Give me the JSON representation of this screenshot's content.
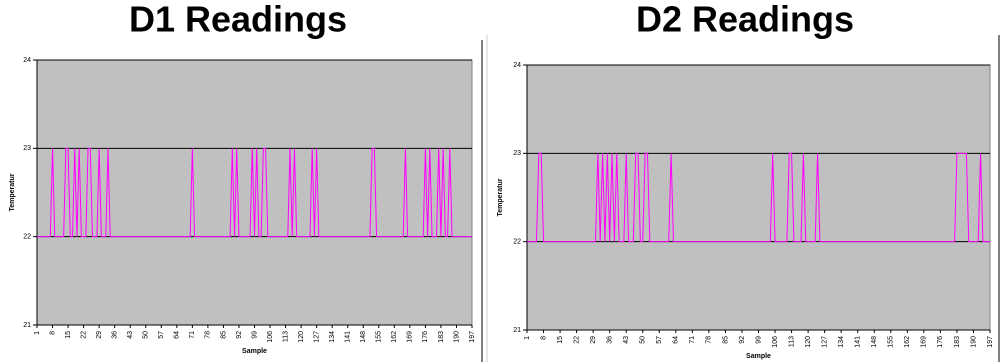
{
  "chart_data": [
    {
      "type": "line",
      "title": "D1 Readings",
      "x_label": "Sample",
      "y_label": "Temperatur",
      "color": "#ff00ff",
      "grid": true,
      "ylim": [
        21,
        24
      ],
      "yticks": [
        21,
        22,
        23,
        24
      ],
      "xlim": [
        1,
        197
      ],
      "xticks": [
        1,
        8,
        15,
        22,
        29,
        36,
        43,
        50,
        57,
        64,
        71,
        78,
        85,
        92,
        99,
        106,
        113,
        120,
        127,
        134,
        141,
        148,
        155,
        162,
        169,
        176,
        183,
        190,
        197
      ],
      "x": [
        1,
        2,
        3,
        4,
        5,
        6,
        7,
        8,
        9,
        10,
        11,
        12,
        13,
        14,
        15,
        16,
        17,
        18,
        19,
        20,
        21,
        22,
        23,
        24,
        25,
        26,
        27,
        28,
        29,
        30,
        31,
        32,
        33,
        34,
        35,
        36,
        37,
        38,
        39,
        40,
        41,
        42,
        43,
        44,
        45,
        46,
        47,
        48,
        49,
        50,
        51,
        52,
        53,
        54,
        55,
        56,
        57,
        58,
        59,
        60,
        61,
        62,
        63,
        64,
        65,
        66,
        67,
        68,
        69,
        70,
        71,
        72,
        73,
        74,
        75,
        76,
        77,
        78,
        79,
        80,
        81,
        82,
        83,
        84,
        85,
        86,
        87,
        88,
        89,
        90,
        91,
        92,
        93,
        94,
        95,
        96,
        97,
        98,
        99,
        100,
        101,
        102,
        103,
        104,
        105,
        106,
        107,
        108,
        109,
        110,
        111,
        112,
        113,
        114,
        115,
        116,
        117,
        118,
        119,
        120,
        121,
        122,
        123,
        124,
        125,
        126,
        127,
        128,
        129,
        130,
        131,
        132,
        133,
        134,
        135,
        136,
        137,
        138,
        139,
        140,
        141,
        142,
        143,
        144,
        145,
        146,
        147,
        148,
        149,
        150,
        151,
        152,
        153,
        154,
        155,
        156,
        157,
        158,
        159,
        160,
        161,
        162,
        163,
        164,
        165,
        166,
        167,
        168,
        169,
        170,
        171,
        172,
        173,
        174,
        175,
        176,
        177,
        178,
        179,
        180,
        181,
        182,
        183,
        184,
        185,
        186,
        187,
        188,
        189,
        190,
        191,
        192,
        193,
        194,
        195,
        196,
        197
      ],
      "values": [
        22,
        22,
        22,
        22,
        22,
        22,
        22,
        23,
        22,
        22,
        22,
        22,
        22,
        23,
        23,
        22,
        22,
        23,
        22,
        23,
        22,
        22,
        22,
        23,
        23,
        22,
        22,
        22,
        23,
        22,
        22,
        22,
        23,
        22,
        22,
        22,
        22,
        22,
        22,
        22,
        22,
        22,
        22,
        22,
        22,
        22,
        22,
        22,
        22,
        22,
        22,
        22,
        22,
        22,
        22,
        22,
        22,
        22,
        22,
        22,
        22,
        22,
        22,
        22,
        22,
        22,
        22,
        22,
        22,
        22,
        23,
        22,
        22,
        22,
        22,
        22,
        22,
        22,
        22,
        22,
        22,
        22,
        22,
        22,
        22,
        22,
        22,
        22,
        23,
        22,
        23,
        22,
        22,
        22,
        22,
        22,
        22,
        23,
        22,
        23,
        22,
        22,
        23,
        23,
        22,
        22,
        22,
        22,
        22,
        22,
        22,
        22,
        22,
        22,
        23,
        22,
        23,
        22,
        22,
        22,
        22,
        22,
        22,
        22,
        23,
        22,
        23,
        22,
        22,
        22,
        22,
        22,
        22,
        22,
        22,
        22,
        22,
        22,
        22,
        22,
        22,
        22,
        22,
        22,
        22,
        22,
        22,
        22,
        22,
        22,
        22,
        23,
        23,
        22,
        22,
        22,
        22,
        22,
        22,
        22,
        22,
        22,
        22,
        22,
        22,
        22,
        23,
        22,
        22,
        22,
        22,
        22,
        22,
        22,
        22,
        23,
        22,
        23,
        22,
        22,
        22,
        23,
        22,
        23,
        22,
        22,
        23,
        22,
        22,
        22,
        22,
        22,
        22,
        22,
        22,
        22,
        22
      ]
    },
    {
      "type": "line",
      "title": "D2 Readings",
      "x_label": "Sample",
      "y_label": "Temperatur",
      "color": "#ff00ff",
      "grid": true,
      "ylim": [
        21,
        24
      ],
      "yticks": [
        21,
        22,
        23,
        24
      ],
      "xlim": [
        1,
        197
      ],
      "xticks": [
        1,
        8,
        15,
        22,
        29,
        36,
        43,
        50,
        57,
        64,
        71,
        78,
        85,
        92,
        99,
        106,
        113,
        120,
        127,
        134,
        141,
        148,
        155,
        162,
        169,
        176,
        183,
        190,
        197
      ],
      "x": [
        1,
        2,
        3,
        4,
        5,
        6,
        7,
        8,
        9,
        10,
        11,
        12,
        13,
        14,
        15,
        16,
        17,
        18,
        19,
        20,
        21,
        22,
        23,
        24,
        25,
        26,
        27,
        28,
        29,
        30,
        31,
        32,
        33,
        34,
        35,
        36,
        37,
        38,
        39,
        40,
        41,
        42,
        43,
        44,
        45,
        46,
        47,
        48,
        49,
        50,
        51,
        52,
        53,
        54,
        55,
        56,
        57,
        58,
        59,
        60,
        61,
        62,
        63,
        64,
        65,
        66,
        67,
        68,
        69,
        70,
        71,
        72,
        73,
        74,
        75,
        76,
        77,
        78,
        79,
        80,
        81,
        82,
        83,
        84,
        85,
        86,
        87,
        88,
        89,
        90,
        91,
        92,
        93,
        94,
        95,
        96,
        97,
        98,
        99,
        100,
        101,
        102,
        103,
        104,
        105,
        106,
        107,
        108,
        109,
        110,
        111,
        112,
        113,
        114,
        115,
        116,
        117,
        118,
        119,
        120,
        121,
        122,
        123,
        124,
        125,
        126,
        127,
        128,
        129,
        130,
        131,
        132,
        133,
        134,
        135,
        136,
        137,
        138,
        139,
        140,
        141,
        142,
        143,
        144,
        145,
        146,
        147,
        148,
        149,
        150,
        151,
        152,
        153,
        154,
        155,
        156,
        157,
        158,
        159,
        160,
        161,
        162,
        163,
        164,
        165,
        166,
        167,
        168,
        169,
        170,
        171,
        172,
        173,
        174,
        175,
        176,
        177,
        178,
        179,
        180,
        181,
        182,
        183,
        184,
        185,
        186,
        187,
        188,
        189,
        190,
        191,
        192,
        193,
        194,
        195,
        196,
        197
      ],
      "values": [
        22,
        22,
        22,
        22,
        22,
        23,
        23,
        22,
        22,
        22,
        22,
        22,
        22,
        22,
        22,
        22,
        22,
        22,
        22,
        22,
        22,
        22,
        22,
        22,
        22,
        22,
        22,
        22,
        22,
        22,
        23,
        22,
        23,
        22,
        23,
        22,
        23,
        22,
        23,
        22,
        22,
        22,
        23,
        22,
        22,
        22,
        23,
        23,
        22,
        22,
        23,
        23,
        22,
        22,
        22,
        22,
        22,
        22,
        22,
        22,
        22,
        23,
        22,
        22,
        22,
        22,
        22,
        22,
        22,
        22,
        22,
        22,
        22,
        22,
        22,
        22,
        22,
        22,
        22,
        22,
        22,
        22,
        22,
        22,
        22,
        22,
        22,
        22,
        22,
        22,
        22,
        22,
        22,
        22,
        22,
        22,
        22,
        22,
        22,
        22,
        22,
        22,
        22,
        22,
        23,
        22,
        22,
        22,
        22,
        22,
        22,
        23,
        23,
        22,
        22,
        22,
        22,
        23,
        22,
        22,
        22,
        22,
        22,
        23,
        22,
        22,
        22,
        22,
        22,
        22,
        22,
        22,
        22,
        22,
        22,
        22,
        22,
        22,
        22,
        22,
        22,
        22,
        22,
        22,
        22,
        22,
        22,
        22,
        22,
        22,
        22,
        22,
        22,
        22,
        22,
        22,
        22,
        22,
        22,
        22,
        22,
        22,
        22,
        22,
        22,
        22,
        22,
        22,
        22,
        22,
        22,
        22,
        22,
        22,
        22,
        22,
        22,
        22,
        22,
        22,
        22,
        22,
        23,
        23,
        23,
        23,
        23,
        22,
        22,
        22,
        22,
        22,
        23,
        22,
        22,
        22,
        22
      ]
    }
  ]
}
